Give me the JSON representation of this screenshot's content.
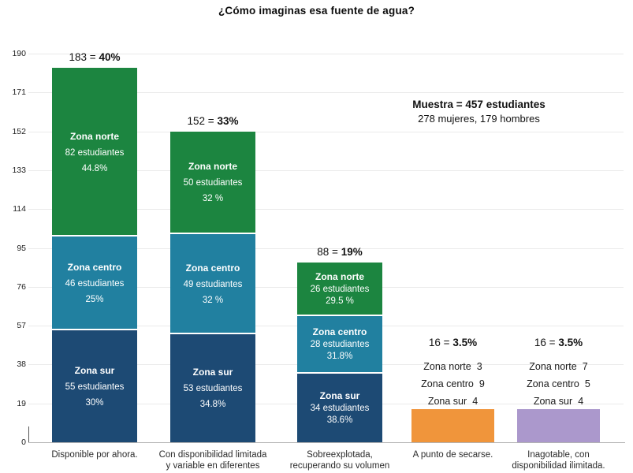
{
  "title": "¿Cómo imaginas esa fuente de agua?",
  "sample_note": {
    "line1": "Muestra = 457 estudiantes",
    "line2": "278 mujeres, 179 hombres"
  },
  "chart_data": {
    "type": "bar",
    "stacked": true,
    "title": "¿Cómo imaginas esa fuente de agua?",
    "xlabel": "",
    "ylabel": "",
    "ylim": [
      0,
      190
    ],
    "yticks": [
      0,
      19,
      38,
      57,
      76,
      95,
      114,
      133,
      152,
      171,
      190
    ],
    "grid": true,
    "legend": "none",
    "colors": {
      "norte": "#1c8540",
      "centro": "#2180a0",
      "sur": "#1d4a74",
      "orange": "#f0953b",
      "purple": "#ab98cc",
      "grid": "#eaeaea",
      "axis": "#b3b3b3"
    },
    "bars": [
      {
        "kind": "stacked",
        "category_lines": [
          "Disponible por ahora."
        ],
        "total": 183,
        "total_prefix": "183 = ",
        "total_pct": "40%",
        "segments": [
          {
            "zone": "Zona sur",
            "value": 55,
            "students_label": "55 estudiantes",
            "pct_label": "30%",
            "color": "sur"
          },
          {
            "zone": "Zona centro",
            "value": 46,
            "students_label": "46 estudiantes",
            "pct_label": "25%",
            "color": "centro"
          },
          {
            "zone": "Zona norte",
            "value": 82,
            "students_label": "82 estudiantes",
            "pct_label": "44.8%",
            "color": "norte"
          }
        ]
      },
      {
        "kind": "stacked",
        "category_lines": [
          "Con disponibilidad limitada",
          "y variable en diferentes"
        ],
        "total": 152,
        "total_prefix": "152 = ",
        "total_pct": "33%",
        "segments": [
          {
            "zone": "Zona sur",
            "value": 53,
            "students_label": "53 estudiantes",
            "pct_label": "34.8%",
            "color": "sur"
          },
          {
            "zone": "Zona centro",
            "value": 49,
            "students_label": "49 estudiantes",
            "pct_label": "32 %",
            "color": "centro"
          },
          {
            "zone": "Zona norte",
            "value": 50,
            "students_label": "50 estudiantes",
            "pct_label": "32 %",
            "color": "norte"
          }
        ]
      },
      {
        "kind": "stacked",
        "category_lines": [
          "Sobreexplotada,",
          "recuperando su volumen"
        ],
        "total": 88,
        "total_prefix": "88 = ",
        "total_pct": "19%",
        "segments": [
          {
            "zone": "Zona sur",
            "value": 34,
            "students_label": "34 estudiantes",
            "pct_label": "38.6%",
            "color": "sur"
          },
          {
            "zone": "Zona centro",
            "value": 28,
            "students_label": "28 estudiantes",
            "pct_label": "31.8%",
            "color": "centro"
          },
          {
            "zone": "Zona norte",
            "value": 26,
            "students_label": "26 estudiantes",
            "pct_label": "29.5 %",
            "color": "norte"
          }
        ]
      },
      {
        "kind": "solid",
        "category_lines": [
          "A punto de secarse."
        ],
        "total": 16,
        "total_prefix": "16 = ",
        "total_pct": "3.5%",
        "color": "orange",
        "breakdown": [
          {
            "zone": "Zona norte",
            "value": "3"
          },
          {
            "zone": "Zona centro",
            "value": "9"
          },
          {
            "zone": "Zona sur",
            "value": "4"
          }
        ]
      },
      {
        "kind": "solid",
        "category_lines": [
          "Inagotable, con",
          "disponibilidad ilimitada."
        ],
        "total": 16,
        "total_prefix": "16 = ",
        "total_pct": "3.5%",
        "color": "purple",
        "breakdown": [
          {
            "zone": "Zona norte",
            "value": "7"
          },
          {
            "zone": "Zona centro",
            "value": "5"
          },
          {
            "zone": "Zona sur",
            "value": "4"
          }
        ]
      }
    ]
  }
}
